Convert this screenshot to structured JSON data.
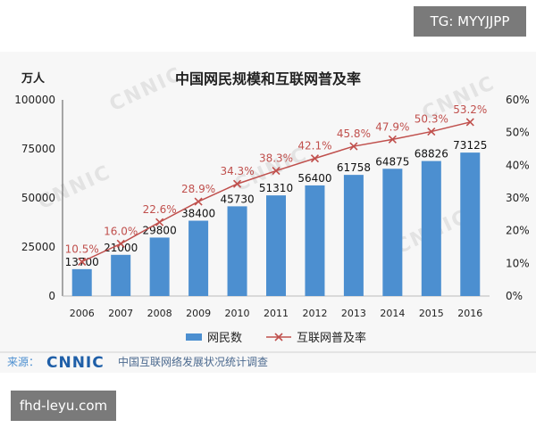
{
  "badges": {
    "top_right": "TG: MYYJJPP",
    "bottom_left": "fhd-leyu.com"
  },
  "watermark_text": "CNNIC",
  "source_line": {
    "label": "来源：",
    "logo": "CNNIC",
    "text": "中国互联网络发展状况统计调查"
  },
  "colors": {
    "bar": "#4c8fd0",
    "line": "#c0504d",
    "marker": "#c0504d"
  },
  "chart_data": {
    "type": "bar",
    "title": "中国网民规模和互联网普及率",
    "ylabel": "万人",
    "categories": [
      "2006",
      "2007",
      "2008",
      "2009",
      "2010",
      "2011",
      "2012",
      "2013",
      "2014",
      "2015",
      "2016"
    ],
    "series": [
      {
        "name": "网民数",
        "type": "bar",
        "axis": "left",
        "values": [
          13700,
          21000,
          29800,
          38400,
          45730,
          51310,
          56400,
          61758,
          64875,
          68826,
          73125
        ],
        "labels": [
          "13700",
          "21000",
          "29800",
          "38400",
          "45730",
          "51310",
          "56400",
          "61758",
          "64875",
          "68826",
          "73125"
        ]
      },
      {
        "name": "互联网普及率",
        "type": "line",
        "axis": "right",
        "values": [
          10.5,
          16.0,
          22.6,
          28.9,
          34.3,
          38.3,
          42.1,
          45.8,
          47.9,
          50.3,
          53.2
        ],
        "labels": [
          "10.5%",
          "16.0%",
          "22.6%",
          "28.9%",
          "34.3%",
          "38.3%",
          "42.1%",
          "45.8%",
          "47.9%",
          "50.3%",
          "53.2%"
        ]
      }
    ],
    "left_axis": {
      "ylim": [
        0,
        100000
      ],
      "ticks": [
        "0",
        "25000",
        "50000",
        "75000",
        "100000"
      ]
    },
    "right_axis": {
      "ylim": [
        0,
        60
      ],
      "ticks": [
        "0%",
        "10%",
        "20%",
        "30%",
        "40%",
        "50%",
        "60%"
      ]
    },
    "legend_position": "bottom-center",
    "grid": false
  }
}
